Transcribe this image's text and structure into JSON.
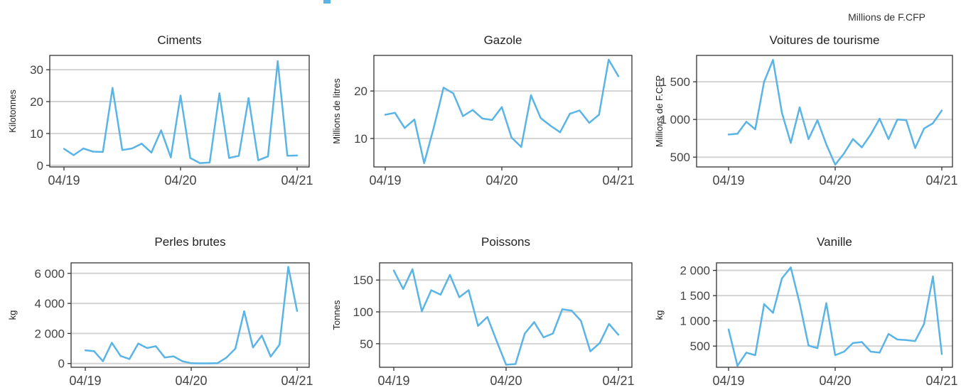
{
  "header": {
    "note": "Millions de F.CFP"
  },
  "colors": {
    "line": "#5ab4e5",
    "grid": "#d3d3d3",
    "frame": "#333333",
    "text": "#222222"
  },
  "chart_data": [
    {
      "type": "line",
      "title": "Ciments",
      "ylabel": "Kilotonnes",
      "xticks": [
        "04/19",
        "04/20",
        "04/21"
      ],
      "yticks": [
        0,
        10,
        20,
        30
      ],
      "ytick_labels": [
        "0",
        "10",
        "20",
        "30"
      ],
      "ylim": [
        -0.5,
        34.5
      ],
      "values": [
        5.2,
        3.2,
        5.3,
        4.3,
        4.2,
        24.3,
        4.8,
        5.3,
        6.8,
        4.0,
        11.0,
        2.5,
        21.9,
        2.3,
        0.7,
        0.9,
        22.6,
        2.3,
        3.0,
        21.1,
        1.6,
        2.8,
        32.7,
        3.0,
        3.1
      ]
    },
    {
      "type": "line",
      "title": "Gazole",
      "ylabel": "Millions de litres",
      "xticks": [
        "04/19",
        "04/20",
        "04/21"
      ],
      "yticks": [
        10,
        20
      ],
      "ytick_labels": [
        "10",
        "20"
      ],
      "ylim": [
        4,
        27.5
      ],
      "values": [
        15.0,
        15.4,
        12.2,
        14.0,
        4.8,
        12.3,
        20.7,
        19.5,
        14.7,
        16.0,
        14.2,
        13.9,
        16.6,
        10.2,
        8.2,
        19.1,
        14.3,
        12.7,
        11.3,
        15.2,
        15.9,
        13.3,
        15.0,
        26.6,
        23.1
      ]
    },
    {
      "type": "line",
      "title": "Voitures de tourisme",
      "ylabel": "Millions de F.CFP",
      "xticks": [
        "04/19",
        "04/20",
        "04/21"
      ],
      "yticks": [
        500,
        1000,
        1500
      ],
      "ytick_labels": [
        "500",
        "1 000",
        "1 500"
      ],
      "ylim": [
        370,
        1850
      ],
      "values": [
        800,
        810,
        970,
        870,
        1500,
        1790,
        1090,
        690,
        1160,
        740,
        990,
        670,
        400,
        550,
        740,
        630,
        800,
        1010,
        740,
        1000,
        990,
        620,
        880,
        950,
        1120
      ]
    },
    {
      "type": "line",
      "title": "Perles brutes",
      "ylabel": "kg",
      "xticks": [
        "04/19",
        "04/20",
        "04/21"
      ],
      "yticks": [
        0,
        2000,
        4000,
        6000
      ],
      "ytick_labels": [
        "0",
        "2 000",
        "4 000",
        "6 000"
      ],
      "ylim": [
        -250,
        6700
      ],
      "values": [
        880,
        820,
        150,
        1380,
        500,
        300,
        1330,
        1030,
        1150,
        400,
        480,
        150,
        20,
        10,
        10,
        30,
        400,
        990,
        3480,
        1070,
        1860,
        460,
        1250,
        6430,
        3490
      ]
    },
    {
      "type": "line",
      "title": "Poissons",
      "ylabel": "Tonnes",
      "xticks": [
        "04/19",
        "04/20",
        "04/21"
      ],
      "yticks": [
        50,
        100,
        150
      ],
      "ytick_labels": [
        "50",
        "100",
        "150"
      ],
      "ylim": [
        13,
        177
      ],
      "values": [
        165,
        136,
        167,
        101,
        134,
        127,
        158,
        123,
        134,
        78,
        92,
        54,
        17,
        18,
        66,
        84,
        60,
        66,
        104,
        102,
        86,
        38,
        51,
        81,
        64
      ]
    },
    {
      "type": "line",
      "title": "Vanille",
      "ylabel": "kg",
      "xticks": [
        "04/19",
        "04/20",
        "04/21"
      ],
      "yticks": [
        500,
        1000,
        1500,
        2000
      ],
      "ytick_labels": [
        "500",
        "1 000",
        "1 500",
        "2 000"
      ],
      "ylim": [
        80,
        2150
      ],
      "values": [
        830,
        110,
        370,
        320,
        1330,
        1160,
        1840,
        2060,
        1350,
        510,
        460,
        1350,
        320,
        390,
        560,
        580,
        390,
        370,
        740,
        630,
        620,
        600,
        940,
        1880,
        340
      ]
    }
  ]
}
